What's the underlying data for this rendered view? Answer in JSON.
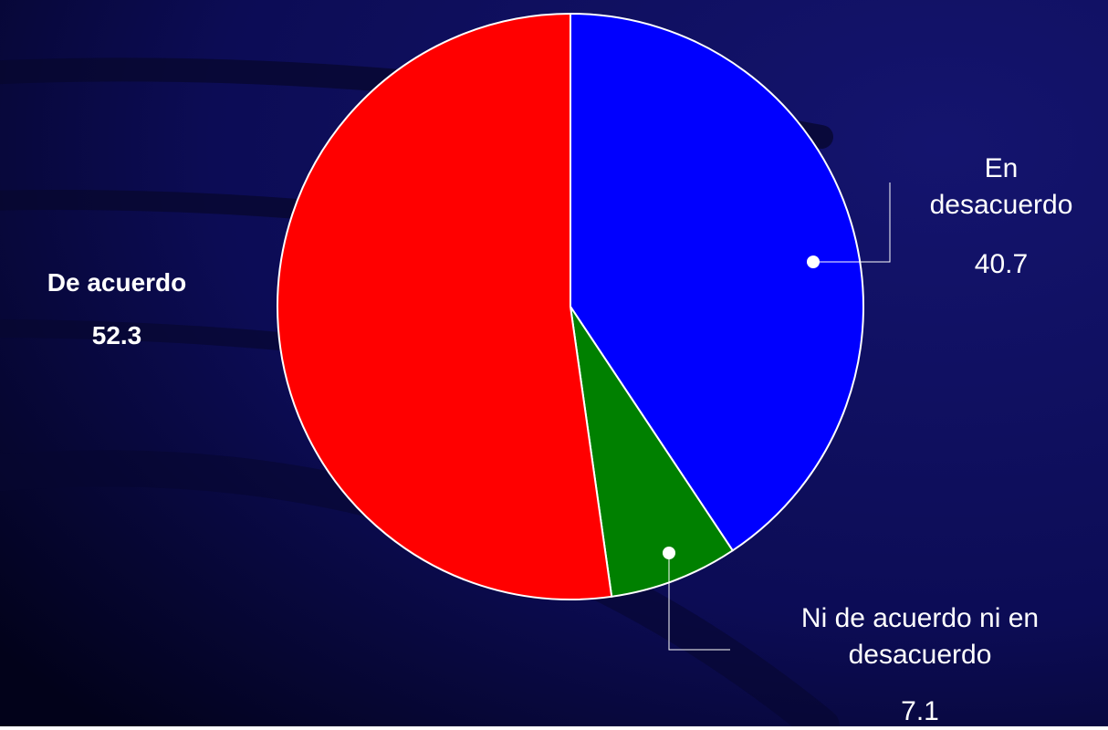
{
  "chart_data": {
    "type": "pie",
    "categories": [
      "En desacuerdo",
      "Ni de acuerdo ni en desacuerdo",
      "De acuerdo"
    ],
    "values": [
      40.7,
      7.1,
      52.3
    ],
    "colors": [
      "#0000ff",
      "#008000",
      "#ff0000"
    ]
  }
}
